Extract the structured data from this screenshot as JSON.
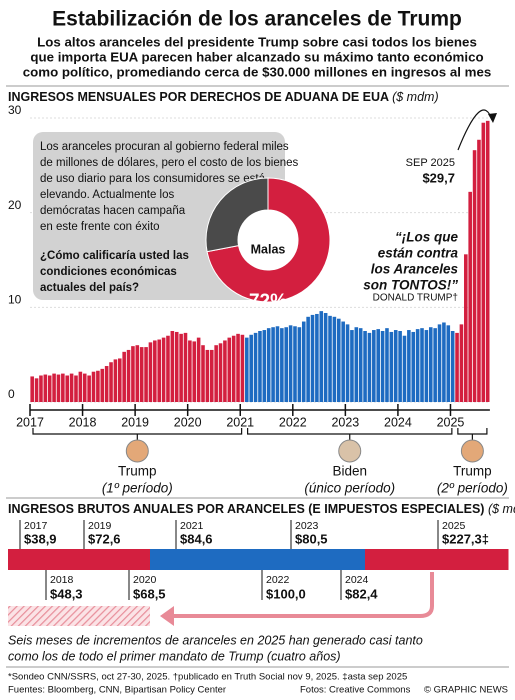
{
  "header": {
    "title": "Estabilización de los aranceles de Trump",
    "subtitle_lines": [
      "Los altos aranceles del presidente Trump sobre casi todos los bienes",
      "que importa EUA parecen haber alcanzado su máximo tanto económico",
      "como político, promediando cerca de $30.000 millones en ingresos al mes"
    ]
  },
  "chart_data": [
    {
      "type": "bar",
      "title": "INGRESOS MENSUALES POR DERECHOS DE ADUANA DE EUA",
      "unit": "($ mdm)",
      "categories": [
        "2017",
        null,
        null,
        null,
        null,
        null,
        null,
        null,
        null,
        null,
        null,
        null,
        "2018",
        null,
        null,
        null,
        null,
        null,
        null,
        null,
        null,
        null,
        null,
        null,
        "2019",
        null,
        null,
        null,
        null,
        null,
        null,
        null,
        null,
        null,
        null,
        null,
        "2020",
        null,
        null,
        null,
        null,
        null,
        null,
        null,
        null,
        null,
        null,
        null,
        "2021",
        null,
        null,
        null,
        null,
        null,
        null,
        null,
        null,
        null,
        null,
        null,
        "2022",
        null,
        null,
        null,
        null,
        null,
        null,
        null,
        null,
        null,
        null,
        null,
        "2023",
        null,
        null,
        null,
        null,
        null,
        null,
        null,
        null,
        null,
        null,
        null,
        "2024",
        null,
        null,
        null,
        null,
        null,
        null,
        null,
        null,
        null,
        null,
        null,
        "2025",
        null,
        null,
        null,
        null,
        null,
        null,
        null,
        null
      ],
      "series": [
        {
          "name": "Trump",
          "period": "(1º período)",
          "color": "#d31f3f",
          "values": [
            2.7,
            2.5,
            2.8,
            2.9,
            2.8,
            3.0,
            2.9,
            3.0,
            2.8,
            3.0,
            2.8,
            3.2,
            3.0,
            2.8,
            3.2,
            3.3,
            3.5,
            3.8,
            4.2,
            4.5,
            4.6,
            5.3,
            5.5,
            5.9,
            6.0,
            5.8,
            5.8,
            6.3,
            6.5,
            6.6,
            6.8,
            7.0,
            7.5,
            7.4,
            7.2,
            7.3,
            6.5,
            6.4,
            6.8,
            6.0,
            5.5,
            5.5,
            6.0,
            6.2,
            6.5,
            6.8,
            7.0,
            7.2,
            7.1,
            null,
            null,
            null,
            null,
            null,
            null,
            null,
            null,
            null,
            null,
            null,
            null,
            null,
            null,
            null,
            null,
            null,
            null,
            null,
            null,
            null,
            null,
            null,
            null,
            null,
            null,
            null,
            null,
            null,
            null,
            null,
            null,
            null,
            null,
            null,
            null,
            null,
            null,
            null,
            null,
            null,
            null,
            null,
            null,
            null,
            null,
            null,
            null,
            null,
            null,
            null,
            null,
            null,
            null,
            null,
            null
          ]
        },
        {
          "name": "Biden",
          "period": "(único período)",
          "color": "#1e6bc1",
          "values": [
            null,
            null,
            null,
            null,
            null,
            null,
            null,
            null,
            null,
            null,
            null,
            null,
            null,
            null,
            null,
            null,
            null,
            null,
            null,
            null,
            null,
            null,
            null,
            null,
            null,
            null,
            null,
            null,
            null,
            null,
            null,
            null,
            null,
            null,
            null,
            null,
            null,
            null,
            null,
            null,
            null,
            null,
            null,
            null,
            null,
            null,
            null,
            null,
            null,
            6.8,
            7.1,
            7.3,
            7.5,
            7.6,
            7.8,
            7.9,
            8.0,
            7.8,
            7.9,
            8.1,
            8.0,
            7.9,
            8.5,
            9.0,
            9.2,
            9.3,
            9.6,
            9.4,
            9.1,
            9.0,
            8.8,
            8.5,
            8.2,
            7.6,
            7.9,
            7.8,
            7.5,
            7.3,
            7.6,
            7.7,
            7.5,
            7.8,
            7.4,
            7.6,
            7.5,
            7.0,
            7.6,
            7.4,
            7.7,
            7.8,
            7.6,
            7.9,
            7.8,
            8.2,
            8.4,
            8.1,
            7.5,
            null,
            null,
            null,
            null,
            null,
            null,
            null,
            null
          ]
        },
        {
          "name": "Trump",
          "period": "(2º período)",
          "color": "#d31f3f",
          "values": [
            null,
            null,
            null,
            null,
            null,
            null,
            null,
            null,
            null,
            null,
            null,
            null,
            null,
            null,
            null,
            null,
            null,
            null,
            null,
            null,
            null,
            null,
            null,
            null,
            null,
            null,
            null,
            null,
            null,
            null,
            null,
            null,
            null,
            null,
            null,
            null,
            null,
            null,
            null,
            null,
            null,
            null,
            null,
            null,
            null,
            null,
            null,
            null,
            null,
            null,
            null,
            null,
            null,
            null,
            null,
            null,
            null,
            null,
            null,
            null,
            null,
            null,
            null,
            null,
            null,
            null,
            null,
            null,
            null,
            null,
            null,
            null,
            null,
            null,
            null,
            null,
            null,
            null,
            null,
            null,
            null,
            null,
            null,
            null,
            null,
            null,
            null,
            null,
            null,
            null,
            null,
            null,
            null,
            null,
            null,
            null,
            null,
            7.3,
            8.2,
            15.6,
            22.2,
            26.6,
            27.7,
            29.5,
            29.7
          ]
        }
      ],
      "ylim": [
        0,
        30
      ],
      "yticks": [
        0,
        10,
        20,
        30
      ],
      "grid": true,
      "annotation": {
        "label": "SEP 2025",
        "value_label": "$29,7"
      },
      "note_lines": [
        "Los aranceles procuran al gobierno federal miles",
        "de millones de dólares, pero el costo de los bienes",
        "de uso diario para los consumidores se está",
        "elevando. Actualmente los",
        "demócratas hacen campaña",
        "en este frente con éxito"
      ],
      "question_lines": [
        "¿Cómo calificaría usted las",
        "condiciones económicas",
        "actuales del país?"
      ],
      "quote_lines": [
        "“¡Los que",
        "están contra",
        "los Aranceles",
        "son TONTOS!”"
      ],
      "quote_author": "DONALD TRUMP†"
    },
    {
      "type": "pie",
      "categories": [
        "Malas",
        null
      ],
      "values": [
        72,
        28
      ],
      "value_labels": [
        "72%",
        null
      ],
      "colors": [
        "#d31f3f",
        "#4a4a4a"
      ]
    },
    {
      "type": "timeline",
      "title": "INGRESOS BRUTOS ANUALES POR ARANCELES (E IMPUESTOS ESPECIALES)",
      "unit": "($ mdm)",
      "categories": [
        "2017",
        "2018",
        "2019",
        "2020",
        "2021",
        "2022",
        "2023",
        "2024",
        "2025"
      ],
      "values": [
        38.9,
        48.3,
        72.6,
        68.5,
        84.6,
        100.0,
        80.5,
        82.4,
        227.3
      ],
      "value_labels": [
        "$38,9",
        "$48,3",
        "$72,6",
        "$68,5",
        "$84,6",
        "$100,0",
        "$80,5",
        "$82,4",
        "$227,3‡"
      ],
      "colors": [
        "#d31f3f",
        "#d31f3f",
        "#d31f3f",
        "#d31f3f",
        "#1e6bc1",
        "#1e6bc1",
        "#1e6bc1",
        "#1e6bc1",
        "#d31f3f"
      ],
      "caption_lines": [
        "Seis meses de incrementos de aranceles en 2025 han generado casi tanto",
        "como los de todo el primer mandato de Trump (cuatro años)"
      ]
    }
  ],
  "footer": {
    "note": "*Sondeo CNN/SSRS, oct 27-30, 2025. †publicado en Truth Social  nov 9, 2025. ‡asta sep 2025",
    "sources": "Fuentes: Bloomberg, CNN, Bipartisan Policy Center",
    "photos": "Fotos: Creative Commons",
    "credit": "© GRAPHIC NEWS"
  }
}
